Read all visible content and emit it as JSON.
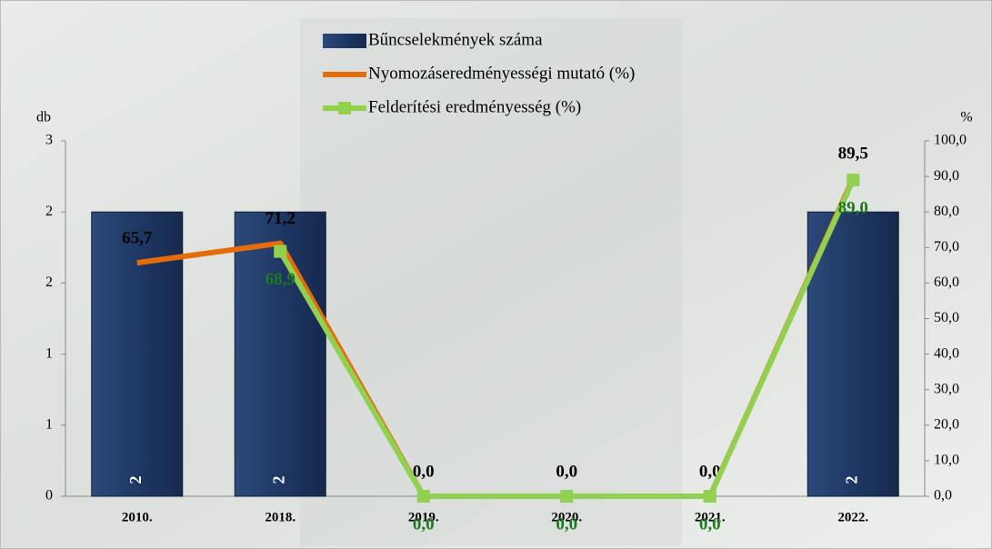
{
  "chart_data": {
    "type": "bar",
    "categories": [
      "2010.",
      "2018.",
      "2019.",
      "2020.",
      "2021.",
      "2022."
    ],
    "y_label": "db",
    "y2_label": "%",
    "series": [
      {
        "name": "Bűncselekmények száma",
        "type": "bar",
        "color": "#1f3864",
        "values": [
          2,
          2,
          0,
          0,
          0,
          2
        ]
      },
      {
        "name": "Nyomozáseredményességi mutató (%)",
        "type": "line",
        "axis": "y2",
        "color": "#e46c0a",
        "values": [
          65.7,
          71.2,
          0,
          0,
          0,
          89.5
        ],
        "value_labels": [
          "65,7",
          "71,2",
          "0,0",
          "0,0",
          "0,0",
          "89,5"
        ]
      },
      {
        "name": "Felderítési eredményesség (%)",
        "type": "line",
        "axis": "y2",
        "color": "#92d050",
        "values": [
          null,
          68.9,
          0,
          0,
          0,
          89.0
        ],
        "value_labels": [
          null,
          "68,9",
          "0,0",
          "0,0",
          "0,0",
          "89,0"
        ]
      }
    ],
    "ylim": [
      0,
      2.5
    ],
    "yticks": [
      0,
      {
        "value": 0.5,
        "label": "1"
      },
      1,
      {
        "value": 1.5,
        "label": "2"
      },
      2,
      {
        "value": 2.5,
        "label": "3"
      }
    ],
    "y2lim": [
      0,
      100
    ],
    "y2ticks": [
      {
        "value": 0,
        "label": "0,0"
      },
      {
        "value": 10,
        "label": "10,0"
      },
      {
        "value": 20,
        "label": "20,0"
      },
      {
        "value": 30,
        "label": "30,0"
      },
      {
        "value": 40,
        "label": "40,0"
      },
      {
        "value": 50,
        "label": "50,0"
      },
      {
        "value": 60,
        "label": "60,0"
      },
      {
        "value": 70,
        "label": "70,0"
      },
      {
        "value": 80,
        "label": "80,0"
      },
      {
        "value": 90,
        "label": "90,0"
      },
      {
        "value": 100,
        "label": "100,0"
      }
    ],
    "legend": "top"
  }
}
